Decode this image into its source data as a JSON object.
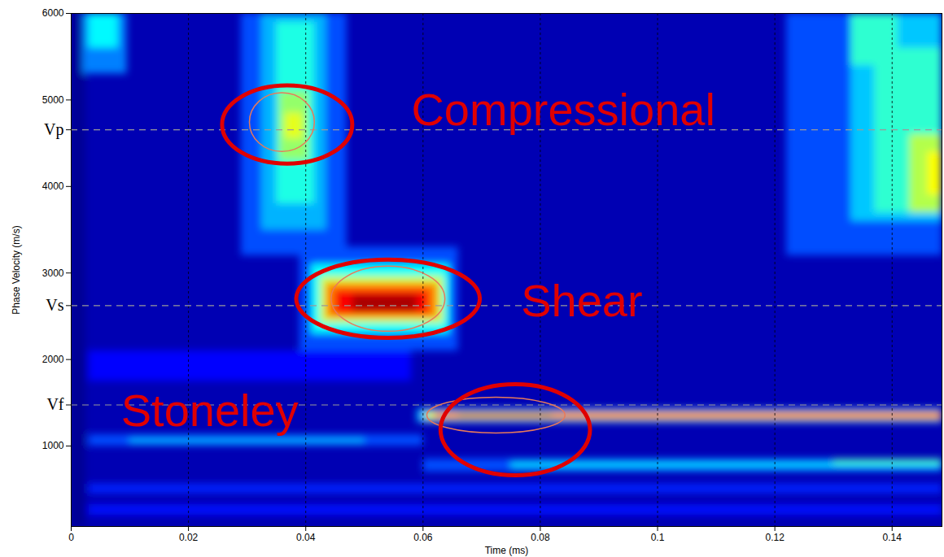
{
  "chart_data": {
    "type": "heatmap",
    "x_label": "Time (ms)",
    "y_label": "Phase Velocity (m/s)",
    "xlim": [
      0,
      0.1485
    ],
    "xticks": [
      0,
      0.02,
      0.04,
      0.06,
      0.08,
      0.1,
      0.12,
      0.14
    ],
    "ylim": [
      70,
      6000
    ],
    "yticks": [
      1000,
      2000,
      3000,
      4000,
      5000,
      6000,
      {
        "value": 4655,
        "label": "Vp"
      },
      {
        "value": 2623,
        "label": "Vs"
      },
      {
        "value": 1475,
        "label": "Vf"
      }
    ],
    "grid": true,
    "value_range": [
      0,
      1
    ],
    "background": 0.05,
    "cells": [
      {
        "t": [
          0,
          0.0025
        ],
        "v": [
          70,
          6000
        ],
        "value": 0.02
      },
      {
        "t": [
          0.003,
          0.1485
        ],
        "v": [
          200,
          320
        ],
        "value": 0.14
      },
      {
        "t": [
          0.003,
          0.1485
        ],
        "v": [
          450,
          560
        ],
        "value": 0.16
      },
      {
        "t": [
          0.003,
          0.058
        ],
        "v": [
          1750,
          2100
        ],
        "value": 0.13
      },
      {
        "t": [
          0.003,
          0.06
        ],
        "v": [
          1000,
          1130
        ],
        "value": 0.2
      },
      {
        "t": [
          0.01,
          0.05
        ],
        "v": [
          1030,
          1090
        ],
        "value": 0.3
      },
      {
        "t": [
          0.06,
          0.1485
        ],
        "v": [
          700,
          850
        ],
        "value": 0.2
      },
      {
        "t": [
          0.075,
          0.1485
        ],
        "v": [
          740,
          820
        ],
        "value": 0.33
      },
      {
        "t": [
          0.13,
          0.1485
        ],
        "v": [
          790,
          840
        ],
        "value": 0.45
      },
      {
        "t": [
          0.002,
          0.0095
        ],
        "v": [
          5300,
          6000
        ],
        "value": 0.25
      },
      {
        "t": [
          0.003,
          0.008
        ],
        "v": [
          5600,
          6000
        ],
        "value": 0.37
      },
      {
        "t": [
          0.029,
          0.047
        ],
        "v": [
          3200,
          6000
        ],
        "value": 0.2
      },
      {
        "t": [
          0.0325,
          0.0435
        ],
        "v": [
          3500,
          6000
        ],
        "value": 0.3
      },
      {
        "t": [
          0.035,
          0.0415
        ],
        "v": [
          3800,
          5900
        ],
        "value": 0.4
      },
      {
        "t": [
          0.0355,
          0.0405
        ],
        "v": [
          4300,
          5100
        ],
        "value": 0.52
      },
      {
        "t": [
          0.0365,
          0.0395
        ],
        "v": [
          4550,
          4850
        ],
        "value": 0.6
      },
      {
        "t": [
          0.039,
          0.066
        ],
        "v": [
          2100,
          3300
        ],
        "value": 0.2
      },
      {
        "t": [
          0.041,
          0.0645
        ],
        "v": [
          2300,
          3100
        ],
        "value": 0.38
      },
      {
        "t": [
          0.0425,
          0.0635
        ],
        "v": [
          2420,
          2960
        ],
        "value": 0.58
      },
      {
        "t": [
          0.0435,
          0.0625
        ],
        "v": [
          2480,
          2880
        ],
        "value": 0.75
      },
      {
        "t": [
          0.045,
          0.061
        ],
        "v": [
          2520,
          2800
        ],
        "value": 0.88
      },
      {
        "t": [
          0.048,
          0.059
        ],
        "v": [
          2560,
          2740
        ],
        "value": 0.96
      },
      {
        "t": [
          0.059,
          0.1485
        ],
        "v": [
          1270,
          1430
        ],
        "value": 0.3
      },
      {
        "t": [
          0.0605,
          0.1485
        ],
        "v": [
          1300,
          1395
        ],
        "value": 0.6
      },
      {
        "t": [
          0.062,
          0.1485
        ],
        "v": [
          1320,
          1380
        ],
        "value": 0.82
      },
      {
        "t": [
          0.066,
          0.082
        ],
        "v": [
          1335,
          1375
        ],
        "value": 0.95
      },
      {
        "t": [
          0.122,
          0.1485
        ],
        "v": [
          3200,
          6000
        ],
        "value": 0.2
      },
      {
        "t": [
          0.133,
          0.1485
        ],
        "v": [
          3600,
          6000
        ],
        "value": 0.32
      },
      {
        "t": [
          0.137,
          0.1485
        ],
        "v": [
          3700,
          5600
        ],
        "value": 0.42
      },
      {
        "t": [
          0.133,
          0.141
        ],
        "v": [
          5400,
          6000
        ],
        "value": 0.42
      },
      {
        "t": [
          0.143,
          0.1485
        ],
        "v": [
          3700,
          4600
        ],
        "value": 0.55
      },
      {
        "t": [
          0.146,
          0.1485
        ],
        "v": [
          3900,
          4400
        ],
        "value": 0.62
      }
    ],
    "annotations": [
      {
        "text": "Compressional",
        "t": 0.058,
        "v": 4880
      },
      {
        "text": "Shear",
        "t": 0.0767,
        "v": 2670
      },
      {
        "text": "Stoneley",
        "t": 0.0085,
        "v": 1400
      }
    ],
    "highlights": [
      {
        "t": 0.0369,
        "v": 4711,
        "dt": 0.0111,
        "dv": 452
      },
      {
        "t": 0.0541,
        "v": 2698,
        "dt": 0.01566,
        "dv": 452
      },
      {
        "t": 0.0758,
        "v": 1184,
        "dt": 0.01275,
        "dv": 527
      }
    ],
    "inner_contours": [
      {
        "t": 0.036,
        "v": 4739,
        "dt": 0.00554,
        "dv": 339
      },
      {
        "t": 0.0541,
        "v": 2698,
        "dt": 0.0097,
        "dv": 376
      },
      {
        "t": 0.0725,
        "v": 1353,
        "dt": 0.01178,
        "dv": 207
      }
    ]
  }
}
